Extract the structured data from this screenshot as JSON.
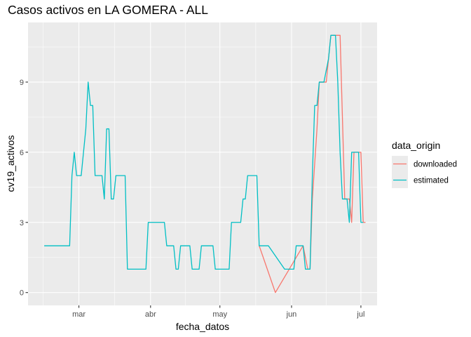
{
  "chart_data": {
    "type": "line",
    "title": "Casos activos en LA GOMERA - ALL",
    "xlabel": "fecha_datos",
    "ylabel": "cv19_activos",
    "x_type": "date",
    "xlim": [
      "2020-02-08",
      "2020-07-08"
    ],
    "ylim": [
      -0.55,
      11.55
    ],
    "y_ticks": [
      0,
      3,
      6,
      9
    ],
    "x_ticks": [
      {
        "date": "2020-03-01",
        "label": "mar"
      },
      {
        "date": "2020-04-01",
        "label": "abr"
      },
      {
        "date": "2020-05-01",
        "label": "may"
      },
      {
        "date": "2020-06-01",
        "label": "jun"
      },
      {
        "date": "2020-07-01",
        "label": "jul"
      }
    ],
    "grid": true,
    "background": "#EBEBEB",
    "legend": {
      "title": "data_origin",
      "position": "right",
      "entries": [
        "downloaded",
        "estimated"
      ]
    },
    "series": [
      {
        "name": "downloaded",
        "color": "#F8766D",
        "points": [
          [
            "2020-05-18",
            2
          ],
          [
            "2020-05-25",
            0
          ],
          [
            "2020-06-06",
            2
          ],
          [
            "2020-06-08",
            1
          ],
          [
            "2020-06-09",
            1
          ],
          [
            "2020-06-10",
            4
          ],
          [
            "2020-06-12",
            7
          ],
          [
            "2020-06-13",
            9
          ],
          [
            "2020-06-16",
            9
          ],
          [
            "2020-06-18",
            11
          ],
          [
            "2020-06-22",
            11
          ],
          [
            "2020-06-24",
            4
          ],
          [
            "2020-06-26",
            4
          ],
          [
            "2020-06-27",
            3
          ],
          [
            "2020-06-28",
            6
          ],
          [
            "2020-06-30",
            6
          ],
          [
            "2020-07-01",
            6
          ],
          [
            "2020-07-02",
            3
          ],
          [
            "2020-07-03",
            3
          ]
        ]
      },
      {
        "name": "estimated",
        "color": "#00BFC4",
        "points": [
          [
            "2020-02-15",
            2
          ],
          [
            "2020-02-26",
            2
          ],
          [
            "2020-02-27",
            5
          ],
          [
            "2020-02-28",
            6
          ],
          [
            "2020-02-29",
            5
          ],
          [
            "2020-03-02",
            5
          ],
          [
            "2020-03-03",
            6
          ],
          [
            "2020-03-04",
            7
          ],
          [
            "2020-03-05",
            9
          ],
          [
            "2020-03-06",
            8
          ],
          [
            "2020-03-07",
            8
          ],
          [
            "2020-03-08",
            5
          ],
          [
            "2020-03-10",
            5
          ],
          [
            "2020-03-11",
            5
          ],
          [
            "2020-03-12",
            4
          ],
          [
            "2020-03-13",
            7
          ],
          [
            "2020-03-14",
            7
          ],
          [
            "2020-03-15",
            4
          ],
          [
            "2020-03-16",
            4
          ],
          [
            "2020-03-17",
            5
          ],
          [
            "2020-03-21",
            5
          ],
          [
            "2020-03-22",
            1
          ],
          [
            "2020-03-30",
            1
          ],
          [
            "2020-03-31",
            3
          ],
          [
            "2020-04-07",
            3
          ],
          [
            "2020-04-08",
            2
          ],
          [
            "2020-04-11",
            2
          ],
          [
            "2020-04-12",
            1
          ],
          [
            "2020-04-13",
            1
          ],
          [
            "2020-04-14",
            2
          ],
          [
            "2020-04-18",
            2
          ],
          [
            "2020-04-19",
            1
          ],
          [
            "2020-04-22",
            1
          ],
          [
            "2020-04-23",
            2
          ],
          [
            "2020-04-28",
            2
          ],
          [
            "2020-04-29",
            1
          ],
          [
            "2020-05-05",
            1
          ],
          [
            "2020-05-06",
            3
          ],
          [
            "2020-05-10",
            3
          ],
          [
            "2020-05-11",
            4
          ],
          [
            "2020-05-12",
            4
          ],
          [
            "2020-05-13",
            5
          ],
          [
            "2020-05-17",
            5
          ],
          [
            "2020-05-18",
            2
          ],
          [
            "2020-05-22",
            2
          ],
          [
            "2020-05-29",
            1
          ],
          [
            "2020-06-02",
            1
          ],
          [
            "2020-06-03",
            2
          ],
          [
            "2020-06-06",
            2
          ],
          [
            "2020-06-07",
            1
          ],
          [
            "2020-06-09",
            1
          ],
          [
            "2020-06-10",
            5
          ],
          [
            "2020-06-11",
            8
          ],
          [
            "2020-06-12",
            8
          ],
          [
            "2020-06-13",
            9
          ],
          [
            "2020-06-15",
            9
          ],
          [
            "2020-06-17",
            10
          ],
          [
            "2020-06-18",
            11
          ],
          [
            "2020-06-20",
            11
          ],
          [
            "2020-06-21",
            9
          ],
          [
            "2020-06-22",
            6
          ],
          [
            "2020-06-23",
            4
          ],
          [
            "2020-06-25",
            4
          ],
          [
            "2020-06-26",
            3
          ],
          [
            "2020-06-27",
            6
          ],
          [
            "2020-06-30",
            6
          ],
          [
            "2020-07-01",
            3
          ],
          [
            "2020-07-02",
            3
          ]
        ]
      }
    ]
  }
}
